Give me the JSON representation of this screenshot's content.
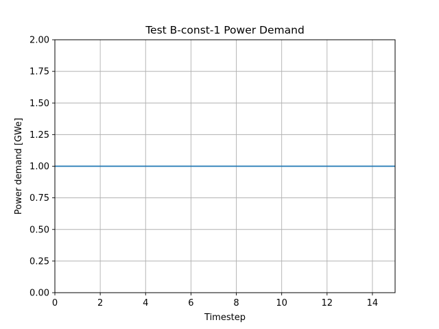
{
  "chart_data": {
    "type": "line",
    "title": "Test B-const-1 Power Demand",
    "xlabel": "Timestep",
    "ylabel": "Power demand [GWe]",
    "xlim": [
      0,
      15
    ],
    "ylim": [
      0,
      2
    ],
    "xticks": [
      0,
      2,
      4,
      6,
      8,
      10,
      12,
      14
    ],
    "xtick_labels": [
      "0",
      "2",
      "4",
      "6",
      "8",
      "10",
      "12",
      "14"
    ],
    "yticks": [
      0,
      0.25,
      0.5,
      0.75,
      1,
      1.25,
      1.5,
      1.75,
      2
    ],
    "ytick_labels": [
      "0.00",
      "0.25",
      "0.50",
      "0.75",
      "1.00",
      "1.25",
      "1.50",
      "1.75",
      "2.00"
    ],
    "grid": true,
    "legend": "none",
    "series": [
      {
        "color": "#1f77b4",
        "x": [
          0,
          15
        ],
        "y": [
          1,
          1
        ]
      }
    ]
  }
}
